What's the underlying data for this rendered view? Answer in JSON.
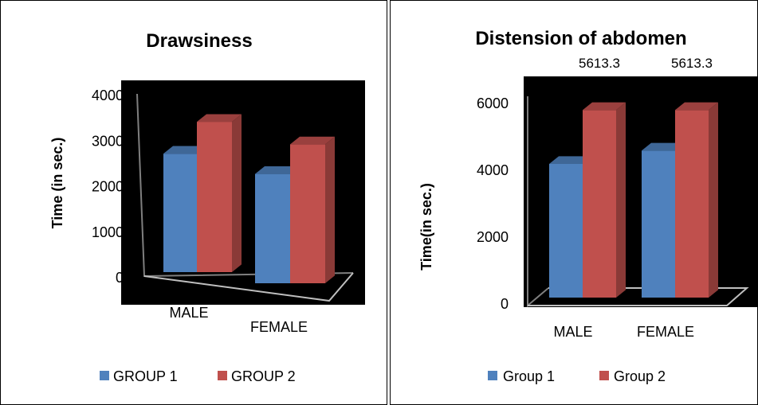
{
  "charts": [
    {
      "title": "Drawsiness",
      "ylabel": "Time (in sec.)",
      "legend": [
        "GROUP 1",
        "GROUP 2"
      ]
    },
    {
      "title": "Distension of abdomen",
      "ylabel": "Time(in sec.)",
      "legend": [
        "Group 1",
        "Group 2"
      ],
      "top_labels": [
        "5613.3",
        "5613.3"
      ]
    }
  ],
  "chart_data": [
    {
      "type": "bar",
      "title": "Drawsiness",
      "ylabel": "Time (in sec.)",
      "categories": [
        "MALE",
        "FEMALE"
      ],
      "yticks": [
        "4000",
        "3000",
        "2000",
        "1000",
        "0"
      ],
      "ylim": [
        0,
        4000
      ],
      "series": [
        {
          "name": "GROUP 1",
          "values": [
            2600,
            2400
          ],
          "color": "#4F81BD"
        },
        {
          "name": "GROUP 2",
          "values": [
            3300,
            3050
          ],
          "color": "#C0504D"
        }
      ],
      "legend_position": "bottom",
      "background": "#000000"
    },
    {
      "type": "bar",
      "title": "Distension of abdomen",
      "ylabel": "Time(in sec.)",
      "categories": [
        "MALE",
        "FEMALE"
      ],
      "yticks": [
        "6000",
        "4000",
        "2000",
        "0"
      ],
      "ylim": [
        0,
        6000
      ],
      "series": [
        {
          "name": "Group 1",
          "values": [
            4000,
            4400
          ],
          "color": "#4F81BD"
        },
        {
          "name": "Group 2",
          "values": [
            5613.3,
            5613.3
          ],
          "color": "#C0504D"
        }
      ],
      "legend_position": "bottom",
      "background": "#000000"
    }
  ]
}
